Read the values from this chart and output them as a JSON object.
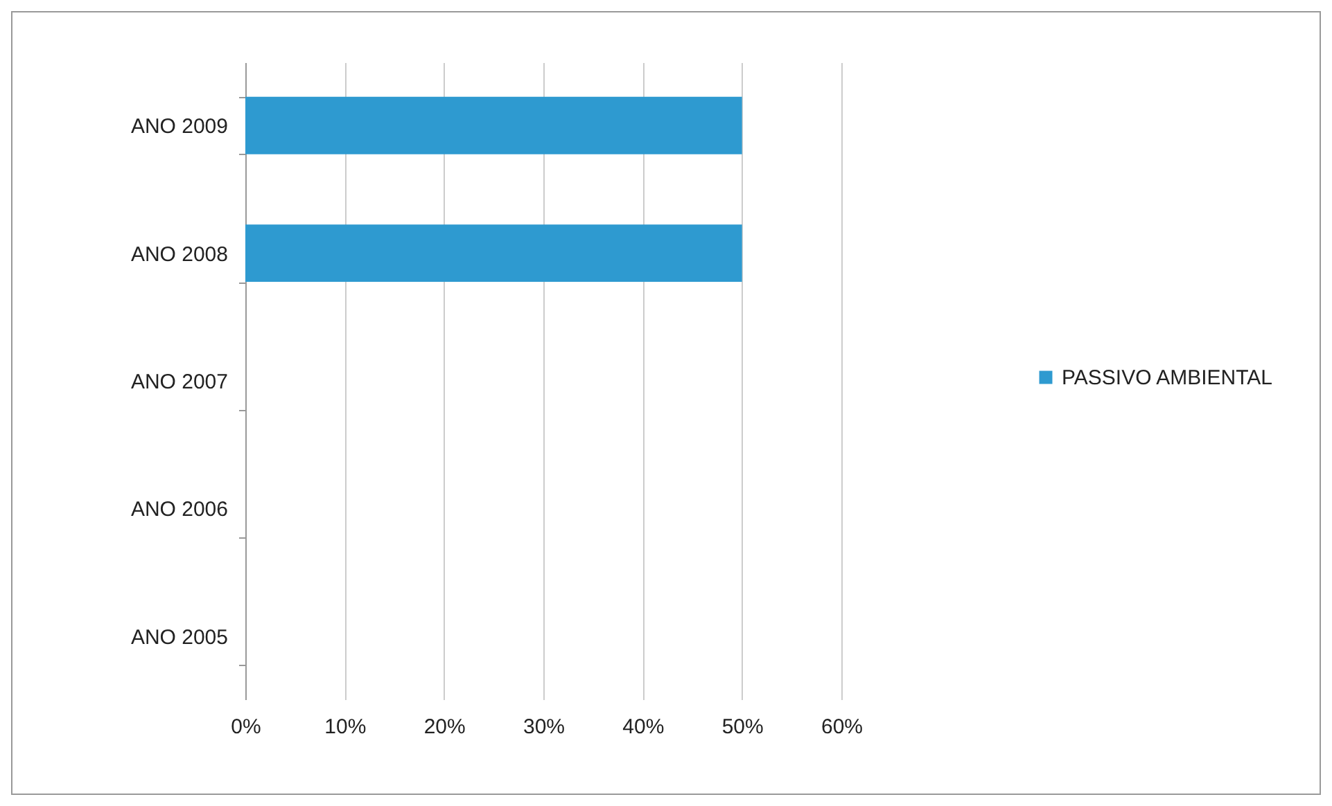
{
  "chart_data": {
    "type": "bar",
    "orientation": "horizontal",
    "categories": [
      "ANO 2009",
      "ANO 2008",
      "ANO 2007",
      "ANO 2006",
      "ANO 2005"
    ],
    "series": [
      {
        "name": "PASSIVO AMBIENTAL",
        "color": "#2e9ad0",
        "values": [
          50,
          50,
          0,
          0,
          0
        ]
      }
    ],
    "xlim": [
      0,
      60
    ],
    "xticks": [
      {
        "value": 0,
        "label": "0%"
      },
      {
        "value": 10,
        "label": "10%"
      },
      {
        "value": 20,
        "label": "20%"
      },
      {
        "value": 30,
        "label": "30%"
      },
      {
        "value": 40,
        "label": "40%"
      },
      {
        "value": 50,
        "label": "50%"
      },
      {
        "value": 60,
        "label": "60%"
      }
    ],
    "grid": "x",
    "legend": "right"
  }
}
